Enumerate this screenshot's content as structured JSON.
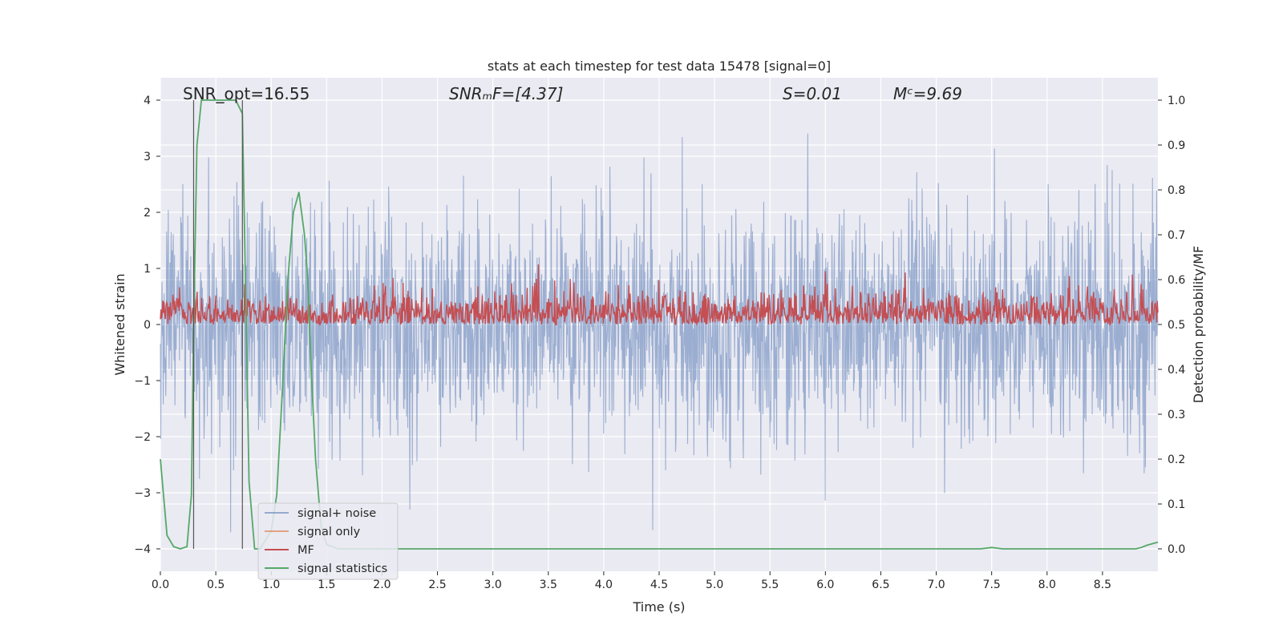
{
  "chart_data": {
    "type": "line",
    "title": "stats at each timestep for test data 15478 [signal=0]",
    "xlabel": "Time (s)",
    "ylabel_left": "Whitened strain",
    "ylabel_right": "Detection probability/MF",
    "xlim": [
      0,
      9.0
    ],
    "ylim_left": [
      -4.4,
      4.4
    ],
    "ylim_right": [
      -0.05,
      1.05
    ],
    "xticks": [
      "0.0",
      "0.5",
      "1.0",
      "1.5",
      "2.0",
      "2.5",
      "3.0",
      "3.5",
      "4.0",
      "4.5",
      "5.0",
      "5.5",
      "6.0",
      "6.5",
      "7.0",
      "7.5",
      "8.0",
      "8.5"
    ],
    "yticks_left": [
      "4",
      "3",
      "2",
      "1",
      "0",
      "−1",
      "−2",
      "−3",
      "−4"
    ],
    "yticks_right": [
      "1.0",
      "0.9",
      "0.8",
      "0.7",
      "0.6",
      "0.5",
      "0.4",
      "0.3",
      "0.2",
      "0.1",
      "0.0"
    ],
    "grid": true,
    "legend_position": "lower-left",
    "colors": {
      "signal_noise": "#4c72b0",
      "signal_only": "#dd8452",
      "mf": "#c44e52",
      "signal_statistics": "#55a868",
      "vline": "#555555",
      "background": "#eaeaf2",
      "grid": "#ffffff"
    },
    "annotations": {
      "snr_opt": "SNR_opt=16.55",
      "snr_mf": "SNRₘF=[4.37]",
      "s": "S=0.01",
      "mc": "Mᶜ=9.69"
    },
    "series": [
      {
        "name": "signal+ noise",
        "axis": "left",
        "description": "whitened strain noise, amplitude roughly between -4 and 4"
      },
      {
        "name": "signal only",
        "axis": "left",
        "values": []
      },
      {
        "name": "MF",
        "axis": "right",
        "description": "matched filter output fluctuating around 0.55, between 0.5 and 0.64"
      },
      {
        "name": "signal statistics",
        "axis": "right",
        "x": [
          0.0,
          0.06,
          0.12,
          0.18,
          0.24,
          0.28,
          0.3,
          0.33,
          0.37,
          0.5,
          0.6,
          0.68,
          0.74,
          0.76,
          0.8,
          0.85,
          0.9,
          0.95,
          1.0,
          1.05,
          1.1,
          1.15,
          1.2,
          1.25,
          1.3,
          1.33,
          1.36,
          1.4,
          1.45,
          1.5,
          1.6,
          7.4,
          7.5,
          7.6,
          8.8,
          8.85,
          8.9,
          9.0
        ],
        "y": [
          0.2,
          0.03,
          0.005,
          0.0,
          0.005,
          0.12,
          0.5,
          0.9,
          1.0,
          1.0,
          1.0,
          1.0,
          0.97,
          0.7,
          0.15,
          0.0,
          0.0,
          0.02,
          0.04,
          0.12,
          0.35,
          0.6,
          0.75,
          0.795,
          0.7,
          0.6,
          0.4,
          0.2,
          0.05,
          0.01,
          0.0,
          0.0,
          0.003,
          0.0,
          0.0,
          0.003,
          0.008,
          0.015
        ]
      }
    ],
    "vlines_x": [
      0.3,
      0.74
    ]
  }
}
